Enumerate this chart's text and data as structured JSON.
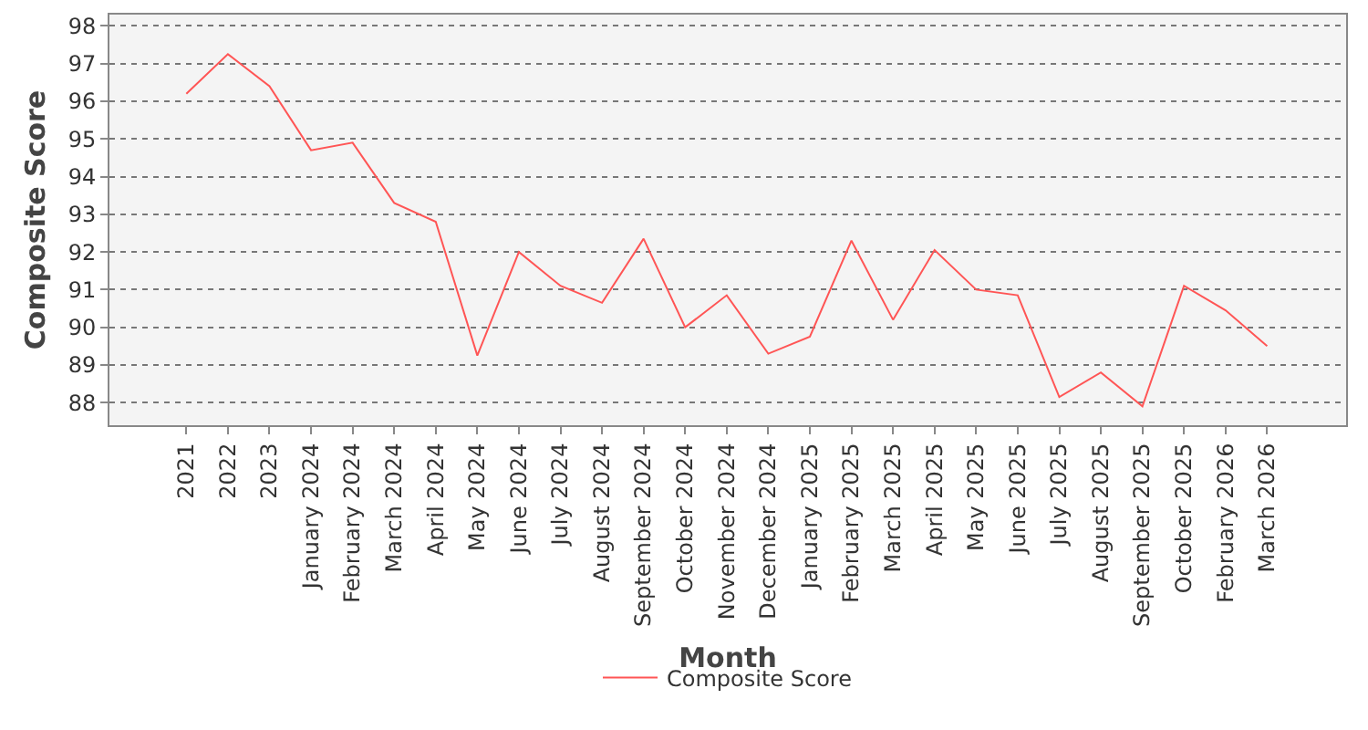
{
  "chart_data": {
    "type": "line",
    "xlabel": "Month",
    "ylabel": "Composite Score",
    "categories": [
      "2021",
      "2022",
      "2023",
      "January 2024",
      "February 2024",
      "March 2024",
      "April 2024",
      "May 2024",
      "June 2024",
      "July 2024",
      "August 2024",
      "September 2024",
      "October 2024",
      "November 2024",
      "December 2024",
      "January 2025",
      "February 2025",
      "March 2025",
      "April 2025",
      "May 2025",
      "June 2025",
      "July 2025",
      "August 2025",
      "September 2025",
      "October 2025",
      "February 2026",
      "March 2026"
    ],
    "series": [
      {
        "name": "Composite Score",
        "color": "#ff5555",
        "values": [
          96.2,
          97.25,
          96.4,
          94.7,
          94.9,
          93.3,
          92.8,
          89.25,
          92.0,
          91.1,
          90.65,
          92.35,
          90.0,
          90.85,
          89.3,
          89.75,
          92.3,
          90.2,
          92.05,
          91.0,
          90.85,
          88.15,
          88.8,
          87.9,
          91.1,
          90.45,
          89.5
        ]
      }
    ],
    "ylim": [
      87.4,
      98.3
    ],
    "yticks": [
      88,
      89,
      90,
      91,
      92,
      93,
      94,
      95,
      96,
      97,
      98
    ],
    "grid": "y",
    "legend": "bottom",
    "marker": "none",
    "line_style": "solid"
  }
}
